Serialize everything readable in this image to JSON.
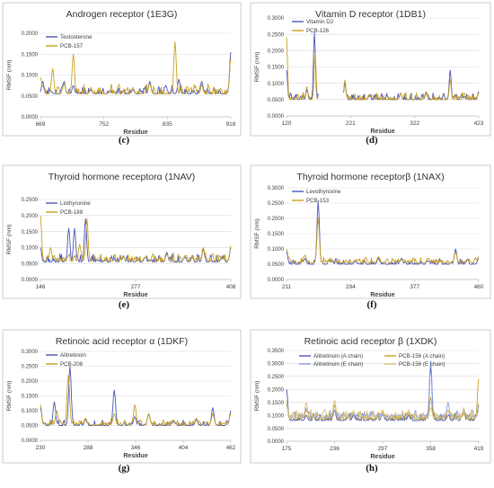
{
  "figure": {
    "letters": [
      "(c)",
      "(d)",
      "(e)",
      "(f)",
      "(g)",
      "(h)"
    ]
  },
  "colors": {
    "blue": "#4a55b8",
    "gold": "#c8a020",
    "light_blue": "#8b9ee6",
    "light_gold": "#d9c27a",
    "grid": "#d9d9d9",
    "axis": "#bfbfbf"
  },
  "chart_data": [
    {
      "type": "line",
      "title": "Androgen receptor (1E3G)",
      "xlabel": "Residue",
      "ylabel": "RMSF (nm)",
      "xlim": [
        669,
        918
      ],
      "ylim": [
        0,
        0.2
      ],
      "xticks": [
        "669",
        "752",
        "835",
        "918"
      ],
      "yticks": [
        "0.0000",
        "0.0500",
        "0.1000",
        "0.1500",
        "0.2000"
      ],
      "legend_position": "top-left",
      "series": [
        {
          "name": "Testosterone",
          "color": "#4a55b8",
          "base": 0.055,
          "noise": 0.014,
          "peaks": [
            [
              672,
              0.085
            ],
            [
              683,
              0.06
            ],
            [
              700,
              0.085
            ],
            [
              712,
              0.075
            ],
            [
              735,
              0.065
            ],
            [
              760,
              0.06
            ],
            [
              790,
              0.065
            ],
            [
              812,
              0.085
            ],
            [
              833,
              0.075
            ],
            [
              850,
              0.09
            ],
            [
              880,
              0.085
            ],
            [
              905,
              0.05
            ],
            [
              918,
              0.155
            ]
          ]
        },
        {
          "name": "PCB-157",
          "color": "#c8a020",
          "base": 0.055,
          "noise": 0.016,
          "peaks": [
            [
              669,
              0.095
            ],
            [
              685,
              0.115
            ],
            [
              700,
              0.08
            ],
            [
              712,
              0.15
            ],
            [
              735,
              0.07
            ],
            [
              760,
              0.06
            ],
            [
              790,
              0.07
            ],
            [
              812,
              0.08
            ],
            [
              845,
              0.18
            ],
            [
              866,
              0.07
            ],
            [
              880,
              0.075
            ],
            [
              905,
              0.06
            ],
            [
              918,
              0.14
            ]
          ]
        }
      ]
    },
    {
      "type": "line",
      "title": "Vitamin D receptor (1DB1)",
      "xlabel": "Residue",
      "ylabel": "RMSF (nm)",
      "xlim": [
        120,
        423
      ],
      "ylim": [
        0,
        0.3
      ],
      "xticks": [
        "120",
        "221",
        "322",
        "423"
      ],
      "yticks": [
        "0.0000",
        "0.0500",
        "0.1000",
        "0.1500",
        "0.2000",
        "0.2500",
        "0.3000"
      ],
      "legend_position": "top-left",
      "gap": [
        170,
        210
      ],
      "series": [
        {
          "name": "Vitamin D2",
          "color": "#4a55b8",
          "base": 0.05,
          "noise": 0.014,
          "peaks": [
            [
              120,
              0.14
            ],
            [
              152,
              0.08
            ],
            [
              164,
              0.255
            ],
            [
              212,
              0.1
            ],
            [
              250,
              0.06
            ],
            [
              300,
              0.07
            ],
            [
              340,
              0.07
            ],
            [
              378,
              0.14
            ],
            [
              400,
              0.06
            ],
            [
              423,
              0.075
            ]
          ]
        },
        {
          "name": "PCB-126",
          "color": "#c8a020",
          "base": 0.05,
          "noise": 0.015,
          "peaks": [
            [
              120,
              0.24
            ],
            [
              152,
              0.09
            ],
            [
              165,
              0.19
            ],
            [
              212,
              0.11
            ],
            [
              250,
              0.065
            ],
            [
              300,
              0.07
            ],
            [
              340,
              0.075
            ],
            [
              378,
              0.11
            ],
            [
              400,
              0.07
            ],
            [
              423,
              0.07
            ]
          ]
        }
      ]
    },
    {
      "type": "line",
      "title": "Thyroid hormone receptorα (1NAV)",
      "xlabel": "Residue",
      "ylabel": "RMSF (nm)",
      "xlim": [
        146,
        408
      ],
      "ylim": [
        0,
        0.25
      ],
      "xticks": [
        "146",
        "277",
        "408"
      ],
      "yticks": [
        "0.0000",
        "0.0500",
        "0.1000",
        "0.1500",
        "0.2000",
        "0.2500"
      ],
      "legend_position": "top-left",
      "series": [
        {
          "name": "Liothyronine",
          "color": "#4a55b8",
          "base": 0.055,
          "noise": 0.018,
          "peaks": [
            [
              146,
              0.1
            ],
            [
              168,
              0.04
            ],
            [
              185,
              0.16
            ],
            [
              193,
              0.16
            ],
            [
              208,
              0.19
            ],
            [
              225,
              0.06
            ],
            [
              260,
              0.07
            ],
            [
              290,
              0.07
            ],
            [
              320,
              0.085
            ],
            [
              345,
              0.07
            ],
            [
              370,
              0.095
            ],
            [
              395,
              0.065
            ],
            [
              408,
              0.1
            ]
          ]
        },
        {
          "name": "PCB-189",
          "color": "#c8a020",
          "base": 0.058,
          "noise": 0.018,
          "peaks": [
            [
              146,
              0.2
            ],
            [
              160,
              0.1
            ],
            [
              175,
              0.03
            ],
            [
              200,
              0.11
            ],
            [
              210,
              0.19
            ],
            [
              225,
              0.065
            ],
            [
              260,
              0.075
            ],
            [
              290,
              0.07
            ],
            [
              320,
              0.08
            ],
            [
              345,
              0.075
            ],
            [
              370,
              0.1
            ],
            [
              395,
              0.07
            ],
            [
              408,
              0.105
            ]
          ]
        }
      ]
    },
    {
      "type": "line",
      "title": "Thyroid hormone receptorβ (1NAX)",
      "xlabel": "Residue",
      "ylabel": "RMSF (nm)",
      "xlim": [
        211,
        460
      ],
      "ylim": [
        0,
        0.3
      ],
      "xticks": [
        "211",
        "294",
        "377",
        "460"
      ],
      "yticks": [
        "0.0000",
        "0.0500",
        "0.1000",
        "0.1500",
        "0.2000",
        "0.2500",
        "0.3000"
      ],
      "legend_position": "top-left",
      "series": [
        {
          "name": "Levothyroxine",
          "color": "#4a55b8",
          "base": 0.05,
          "noise": 0.013,
          "peaks": [
            [
              211,
              0.09
            ],
            [
              235,
              0.07
            ],
            [
              252,
              0.255
            ],
            [
              270,
              0.06
            ],
            [
              300,
              0.06
            ],
            [
              330,
              0.07
            ],
            [
              360,
              0.07
            ],
            [
              395,
              0.06
            ],
            [
              430,
              0.1
            ],
            [
              445,
              0.06
            ],
            [
              460,
              0.07
            ]
          ]
        },
        {
          "name": "PCB-153",
          "color": "#c8a020",
          "base": 0.055,
          "noise": 0.015,
          "peaks": [
            [
              211,
              0.1
            ],
            [
              235,
              0.08
            ],
            [
              252,
              0.2
            ],
            [
              270,
              0.065
            ],
            [
              300,
              0.065
            ],
            [
              330,
              0.075
            ],
            [
              360,
              0.065
            ],
            [
              395,
              0.07
            ],
            [
              430,
              0.09
            ],
            [
              445,
              0.065
            ],
            [
              460,
              0.075
            ]
          ]
        }
      ]
    },
    {
      "type": "line",
      "title": "Retinoic acid receptor α (1DKF)",
      "xlabel": "Residue",
      "ylabel": "RMSF (nm)",
      "xlim": [
        230,
        462
      ],
      "ylim": [
        0,
        0.3
      ],
      "xticks": [
        "230",
        "288",
        "346",
        "404",
        "462"
      ],
      "yticks": [
        "0.0000",
        "0.0500",
        "0.1000",
        "0.1500",
        "0.2000",
        "0.2500",
        "0.3000"
      ],
      "legend_position": "top-left",
      "series": [
        {
          "name": "Alitretinoin",
          "color": "#4a55b8",
          "base": 0.05,
          "noise": 0.013,
          "peaks": [
            [
              230,
              0.11
            ],
            [
              247,
              0.13
            ],
            [
              266,
              0.25
            ],
            [
              285,
              0.07
            ],
            [
              320,
              0.17
            ],
            [
              345,
              0.08
            ],
            [
              362,
              0.09
            ],
            [
              392,
              0.065
            ],
            [
              420,
              0.07
            ],
            [
              440,
              0.11
            ],
            [
              455,
              0.05
            ],
            [
              462,
              0.1
            ]
          ]
        },
        {
          "name": "PCB-208",
          "color": "#c8a020",
          "base": 0.052,
          "noise": 0.014,
          "peaks": [
            [
              230,
              0.12
            ],
            [
              250,
              0.1
            ],
            [
              264,
              0.22
            ],
            [
              285,
              0.075
            ],
            [
              320,
              0.09
            ],
            [
              345,
              0.12
            ],
            [
              362,
              0.09
            ],
            [
              392,
              0.07
            ],
            [
              420,
              0.075
            ],
            [
              440,
              0.09
            ],
            [
              455,
              0.06
            ],
            [
              462,
              0.09
            ]
          ]
        }
      ]
    },
    {
      "type": "line",
      "title": "Retinoic acid receptor β (1XDK)",
      "xlabel": "Residue",
      "ylabel": "RMSF (nm)",
      "xlim": [
        175,
        419
      ],
      "ylim": [
        0,
        0.35
      ],
      "xticks": [
        "175",
        "236",
        "297",
        "358",
        "419"
      ],
      "yticks": [
        "0.0000",
        "0.0500",
        "0.1000",
        "0.1500",
        "0.2000",
        "0.2500",
        "0.3000",
        "0.3500"
      ],
      "legend_position": "top",
      "series": [
        {
          "name": "Alitretinoin (A chain)",
          "color": "#4a55b8",
          "base": 0.08,
          "noise": 0.02,
          "peaks": [
            [
              175,
              0.2
            ],
            [
              200,
              0.1
            ],
            [
              236,
              0.12
            ],
            [
              260,
              0.1
            ],
            [
              297,
              0.11
            ],
            [
              330,
              0.1
            ],
            [
              358,
              0.29
            ],
            [
              380,
              0.1
            ],
            [
              400,
              0.11
            ],
            [
              419,
              0.14
            ]
          ]
        },
        {
          "name": "PCB-156 (A chain)",
          "color": "#c8a020",
          "base": 0.085,
          "noise": 0.02,
          "peaks": [
            [
              175,
              0.14
            ],
            [
              200,
              0.12
            ],
            [
              236,
              0.14
            ],
            [
              260,
              0.11
            ],
            [
              297,
              0.12
            ],
            [
              330,
              0.11
            ],
            [
              358,
              0.17
            ],
            [
              380,
              0.12
            ],
            [
              400,
              0.11
            ],
            [
              419,
              0.24
            ]
          ]
        },
        {
          "name": "Alitretinoin (E chain)",
          "color": "#8b9ee6",
          "base": 0.09,
          "noise": 0.022,
          "peaks": [
            [
              175,
              0.15
            ],
            [
              200,
              0.13
            ],
            [
              236,
              0.12
            ],
            [
              260,
              0.11
            ],
            [
              297,
              0.1
            ],
            [
              330,
              0.12
            ],
            [
              358,
              0.31
            ],
            [
              380,
              0.15
            ],
            [
              400,
              0.12
            ],
            [
              419,
              0.12
            ]
          ]
        },
        {
          "name": "PCB-156 (E chain)",
          "color": "#d9c27a",
          "base": 0.09,
          "noise": 0.022,
          "peaks": [
            [
              175,
              0.16
            ],
            [
              200,
              0.15
            ],
            [
              236,
              0.16
            ],
            [
              260,
              0.12
            ],
            [
              297,
              0.11
            ],
            [
              330,
              0.12
            ],
            [
              358,
              0.13
            ],
            [
              380,
              0.12
            ],
            [
              400,
              0.13
            ],
            [
              419,
              0.15
            ]
          ]
        }
      ]
    }
  ]
}
